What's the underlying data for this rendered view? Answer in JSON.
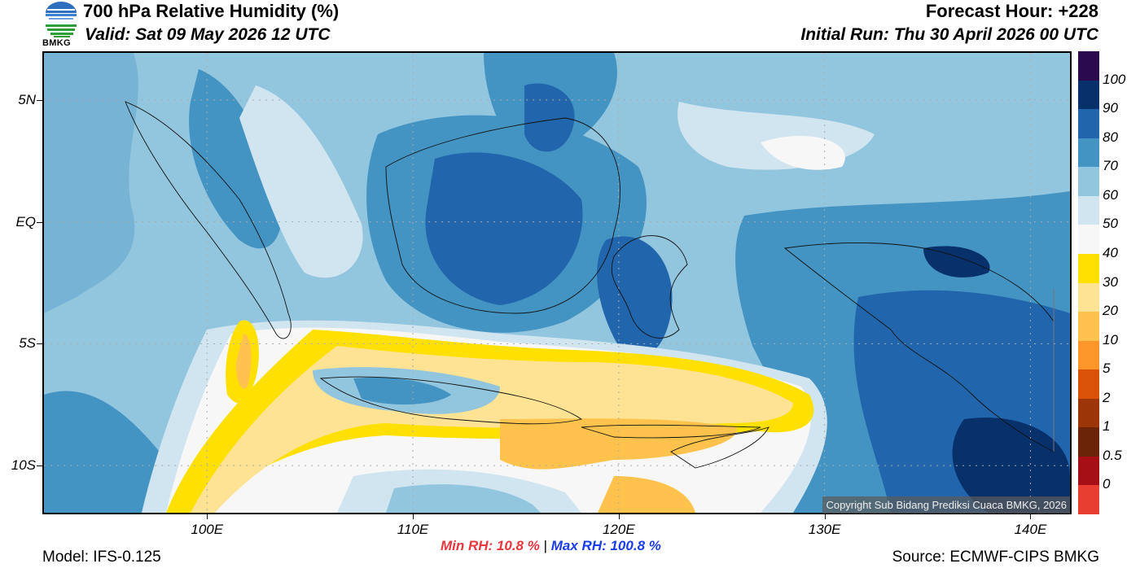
{
  "header": {
    "title": "700 hPa Relative Humidity (%)",
    "valid": "Valid: Sat 09 May 2026 12 UTC",
    "forecast_hour": "Forecast Hour: +228",
    "initial_run": "Initial Run: Thu 30 April 2026 00 UTC",
    "logo_text": "BMKG"
  },
  "map": {
    "lat_labels": [
      "5N",
      "EQ",
      "5S",
      "10S"
    ],
    "lat_values": [
      5,
      0,
      -5,
      -10
    ],
    "lon_labels": [
      "100E",
      "110E",
      "120E",
      "130E",
      "140E"
    ],
    "lon_values": [
      100,
      110,
      120,
      130,
      140
    ],
    "lon_range": [
      92,
      142
    ],
    "lat_range": [
      -12,
      7
    ],
    "copyright": "Copyright Sub Bidang Prediksi Cuaca BMKG, 2026"
  },
  "colorbar": {
    "labels": [
      "100",
      "90",
      "80",
      "70",
      "60",
      "50",
      "40",
      "30",
      "20",
      "10",
      "5",
      "2",
      "1",
      "0.5",
      "0"
    ],
    "colors": [
      "#2b0a4f",
      "#08306b",
      "#2166ac",
      "#4393c3",
      "#92c5de",
      "#d1e5f0",
      "#f7f7f7",
      "#ffe000",
      "#fee395",
      "#ffc34d",
      "#fd962a",
      "#d95208",
      "#9c3508",
      "#6b2408",
      "#a50f15",
      "#e83e31"
    ]
  },
  "footer": {
    "model": "Model: IFS-0.125",
    "min_rh": "Min RH:  10.8 %",
    "separator": "|",
    "max_rh": "Max RH: 100.8 %",
    "source": "Source: ECMWF-CIPS BMKG"
  }
}
